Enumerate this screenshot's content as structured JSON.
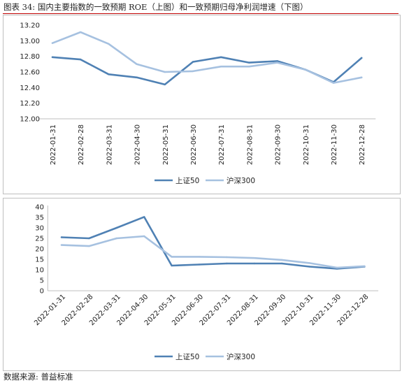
{
  "figure": {
    "title": "图表 34: 国内主要指数的一致预期 ROE（上图）和一致预期归母净利润增速（下图）",
    "source": "数据来源: 普益标准"
  },
  "colors": {
    "sh50": "#4f81b4",
    "hs300": "#a6c1e0",
    "rule": "#c00000",
    "axis": "#bfbfbf"
  },
  "chart_data": [
    {
      "type": "line",
      "title": "",
      "xlabel": "",
      "ylabel": "",
      "categories": [
        "2022-01-31",
        "2022-02-28",
        "2022-03-31",
        "2022-04-30",
        "2022-05-31",
        "2022-06-30",
        "2022-07-31",
        "2022-08-31",
        "2022-09-30",
        "2022-10-31",
        "2022-11-30",
        "2022-12-28"
      ],
      "ylim": [
        12.0,
        13.2
      ],
      "yticks": [
        "12.00",
        "12.20",
        "12.40",
        "12.60",
        "12.80",
        "13.00",
        "13.20"
      ],
      "legend_position": "bottom",
      "grid": false,
      "series": [
        {
          "name": "上证50",
          "values": [
            12.79,
            12.76,
            12.57,
            12.53,
            12.44,
            12.73,
            12.79,
            12.72,
            12.74,
            12.63,
            12.47,
            12.78
          ]
        },
        {
          "name": "沪深300",
          "values": [
            12.97,
            13.11,
            12.96,
            12.7,
            12.6,
            12.61,
            12.67,
            12.67,
            12.72,
            12.63,
            12.46,
            12.53
          ]
        }
      ]
    },
    {
      "type": "line",
      "title": "",
      "xlabel": "",
      "ylabel": "",
      "categories": [
        "2022-01-31",
        "2022-02-28",
        "2022-03-31",
        "2022-04-30",
        "2022-05-31",
        "2022-06-30",
        "2022-07-31",
        "2022-08-31",
        "2022-09-30",
        "2022-10-31",
        "2022-11-30",
        "2022-12-28"
      ],
      "ylim": [
        0,
        40
      ],
      "yticks": [
        "0",
        "5",
        "10",
        "15",
        "20",
        "25",
        "30",
        "35",
        "40"
      ],
      "legend_position": "bottom",
      "grid": false,
      "series": [
        {
          "name": "上证50",
          "values": [
            25.5,
            25.0,
            30.0,
            35.2,
            12.0,
            12.5,
            13.0,
            13.0,
            13.0,
            11.5,
            10.5,
            11.5
          ]
        },
        {
          "name": "沪深300",
          "values": [
            21.8,
            21.3,
            25.0,
            26.0,
            16.2,
            16.2,
            16.0,
            15.6,
            14.7,
            13.2,
            11.0,
            11.7
          ]
        }
      ]
    }
  ]
}
